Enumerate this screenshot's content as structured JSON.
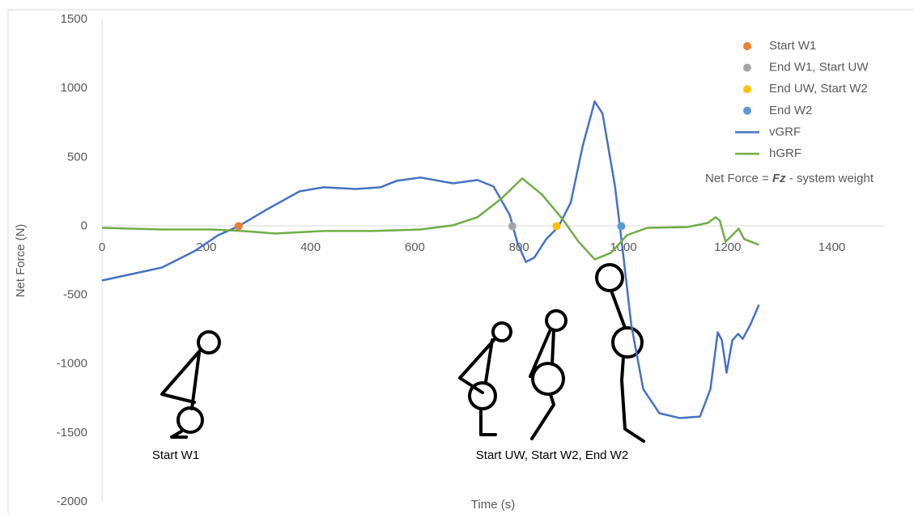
{
  "chart_data": {
    "type": "line",
    "x_label": "Time (s)",
    "y_label": "Net Force (N)",
    "xlim": [
      0,
      1500
    ],
    "ylim": [
      -2000,
      1500
    ],
    "xticks": [
      0,
      200,
      400,
      600,
      800,
      1000,
      1200,
      1400
    ],
    "yticks": [
      -2000,
      -1500,
      -1000,
      -500,
      0,
      500,
      1000,
      1500
    ],
    "grid": false,
    "legend": "top-right",
    "series": [
      {
        "name": "Start W1",
        "style": "marker",
        "color": "#ed7d31",
        "x": [
          262
        ],
        "values": [
          0
        ]
      },
      {
        "name": "End W1, Start UW",
        "style": "marker",
        "color": "#a5a5a5",
        "x": [
          787
        ],
        "values": [
          0
        ]
      },
      {
        "name": "End UW, Start W2",
        "style": "marker",
        "color": "#ffc000",
        "x": [
          872
        ],
        "values": [
          0
        ]
      },
      {
        "name": "End W2",
        "style": "marker",
        "color": "#5b9bd5",
        "x": [
          996
        ],
        "values": [
          0
        ]
      },
      {
        "name": "vGRF",
        "style": "line",
        "color": "#4472c4",
        "x": [
          0,
          115,
          177,
          223,
          262,
          317,
          379,
          425,
          487,
          534,
          565,
          611,
          673,
          720,
          751,
          782,
          797,
          813,
          829,
          852,
          875,
          899,
          922,
          945,
          960,
          984,
          999,
          1015,
          1038,
          1069,
          1108,
          1147,
          1167,
          1181,
          1189,
          1198,
          1209,
          1220,
          1229,
          1244,
          1260
        ],
        "values": [
          -394,
          -300,
          -182,
          -65,
          0,
          123,
          253,
          282,
          270,
          282,
          329,
          353,
          311,
          335,
          288,
          82,
          -123,
          -259,
          -229,
          -94,
          -6,
          170,
          582,
          905,
          817,
          288,
          -182,
          -711,
          -1181,
          -1357,
          -1392,
          -1381,
          -1181,
          -770,
          -828,
          -1063,
          -828,
          -781,
          -817,
          -711,
          -570
        ]
      },
      {
        "name": "hGRF",
        "style": "line",
        "color": "#70ad47",
        "x": [
          0,
          115,
          208,
          270,
          332,
          425,
          518,
          611,
          673,
          720,
          766,
          806,
          844,
          883,
          914,
          945,
          976,
          1007,
          1046,
          1123,
          1162,
          1177,
          1185,
          1196,
          1209,
          1221,
          1232,
          1260
        ],
        "values": [
          -12,
          -24,
          -24,
          -35,
          -53,
          -35,
          -35,
          -24,
          6,
          65,
          200,
          347,
          229,
          53,
          -112,
          -241,
          -194,
          -65,
          -12,
          -6,
          24,
          65,
          41,
          -112,
          -65,
          -18,
          -94,
          -135
        ]
      }
    ],
    "annotation": [
      "Net Force = ",
      "Fz",
      " - system weight"
    ],
    "figure_labels": [
      "Start W1",
      "Start UW, Start W2, End W2"
    ]
  }
}
